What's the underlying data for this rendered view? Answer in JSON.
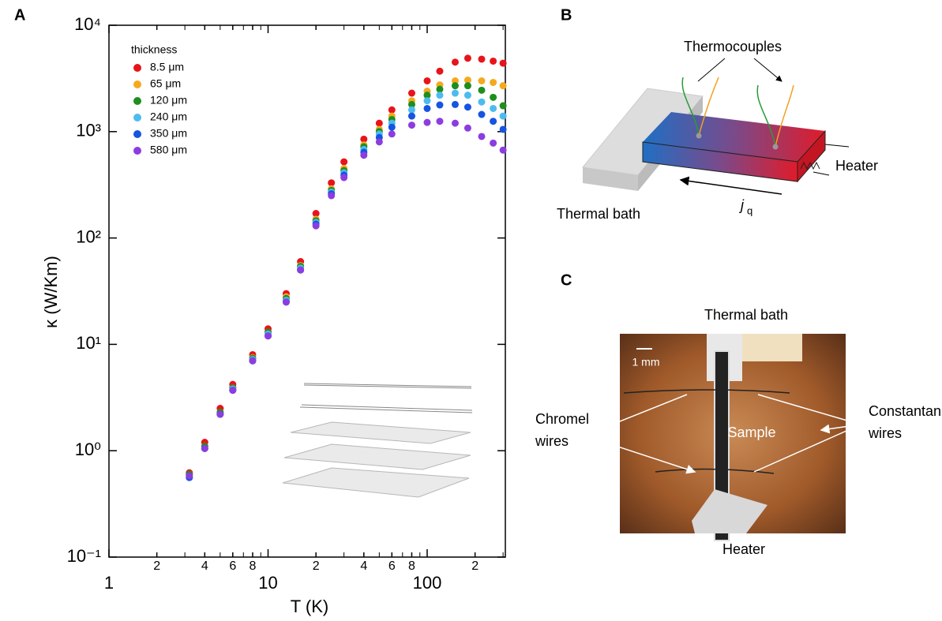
{
  "panel_labels": [
    "A",
    "B",
    "C"
  ],
  "chart_data": {
    "type": "scatter",
    "log_x": true,
    "log_y": true,
    "x_label": "T (K)",
    "y_label": "κ (W/Km)",
    "legend_title": "thickness",
    "legend": "upper left",
    "x": [
      3.2,
      4,
      5,
      6,
      8,
      10,
      13,
      16,
      20,
      25,
      30,
      40,
      50,
      60,
      80,
      100,
      120,
      150,
      180,
      220,
      260,
      300
    ],
    "series": [
      {
        "name": "8.5 μm",
        "color": "#e8141b",
        "values": [
          0.62,
          1.2,
          2.5,
          4.2,
          8,
          14,
          30,
          60,
          170,
          330,
          520,
          850,
          1200,
          1600,
          2300,
          3000,
          3700,
          4500,
          4900,
          4800,
          4600,
          4400
        ]
      },
      {
        "name": "65 μm",
        "color": "#f5a91e",
        "values": [
          0.6,
          1.1,
          2.3,
          3.9,
          7.5,
          13,
          28,
          55,
          150,
          290,
          450,
          750,
          1050,
          1400,
          1950,
          2400,
          2750,
          3000,
          3050,
          3000,
          2900,
          2700
        ]
      },
      {
        "name": "120 μm",
        "color": "#1d8f1d",
        "values": [
          0.6,
          1.1,
          2.3,
          3.9,
          7.4,
          13,
          27,
          54,
          145,
          280,
          430,
          720,
          1000,
          1300,
          1800,
          2200,
          2500,
          2700,
          2700,
          2450,
          2100,
          1750
        ]
      },
      {
        "name": "240 μm",
        "color": "#4dbbf0",
        "values": [
          0.56,
          1.05,
          2.2,
          3.8,
          7.2,
          12.5,
          26,
          52,
          140,
          270,
          410,
          680,
          950,
          1200,
          1600,
          1950,
          2200,
          2300,
          2200,
          1900,
          1650,
          1400
        ]
      },
      {
        "name": "350 μm",
        "color": "#1555e0",
        "values": [
          0.56,
          1.05,
          2.2,
          3.7,
          7,
          12,
          25,
          50,
          135,
          260,
          390,
          640,
          880,
          1100,
          1400,
          1650,
          1780,
          1800,
          1700,
          1450,
          1250,
          1050
        ]
      },
      {
        "name": "580 μm",
        "color": "#8c3de0",
        "values": [
          0.58,
          1.05,
          2.2,
          3.7,
          7,
          12,
          25,
          50,
          130,
          250,
          370,
          600,
          800,
          950,
          1150,
          1220,
          1250,
          1200,
          1080,
          900,
          780,
          670
        ]
      }
    ],
    "xlim": [
      1,
      310
    ],
    "ylim": [
      0.1,
      10000
    ],
    "xticks": [
      1,
      2,
      4,
      6,
      8,
      10,
      {
        "value": 20,
        "label": "2"
      },
      {
        "value": 40,
        "label": "4"
      },
      {
        "value": 60,
        "label": "6"
      },
      {
        "value": 80,
        "label": "8"
      },
      100,
      {
        "value": 200,
        "label": "2"
      }
    ],
    "yticks": [
      {
        "value": 0.1,
        "label": "10⁻¹"
      },
      {
        "value": 1,
        "label": "10⁰"
      },
      {
        "value": 10,
        "label": "10¹"
      },
      {
        "value": 100,
        "label": "10²"
      },
      {
        "value": 1000,
        "label": "10³"
      },
      {
        "value": 10000,
        "label": "10⁴"
      }
    ]
  },
  "diagram_b": {
    "thermocouples": "Thermocouples",
    "heater": "Heater",
    "thermal_bath": "Thermal bath",
    "flux_symbol": "j",
    "flux_subscript": "q"
  },
  "photo_c": {
    "thermal_bath": "Thermal bath",
    "heater": "Heater",
    "scale": "1 mm",
    "sample": "Sample",
    "chromel": [
      "Chromel",
      "wires"
    ],
    "constantan": [
      "Constantan",
      "wires"
    ]
  }
}
